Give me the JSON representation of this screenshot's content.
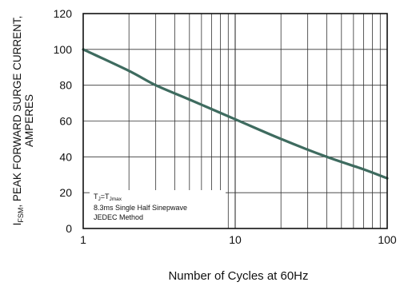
{
  "chart_data": {
    "type": "line",
    "xscale": "log",
    "xlim": [
      1,
      100
    ],
    "ylim": [
      0,
      120
    ],
    "x_ticks": [
      1,
      10,
      100
    ],
    "y_ticks": [
      0,
      20,
      40,
      60,
      80,
      100,
      120
    ],
    "xlabel": "Number of Cycles at 60Hz",
    "ylabel_line1": "PEAK FORWARD SURGE CURRENT,",
    "ylabel_line2": "AMPERES",
    "ylabel_prefix": "I",
    "ylabel_subscript": "FSM",
    "ylabel_sep": ", ",
    "grid": true,
    "series": [
      {
        "color": "#3e6b5f",
        "x": [
          1,
          2,
          3,
          5,
          10,
          20,
          40,
          70,
          100
        ],
        "y": [
          100,
          88,
          80,
          72,
          61,
          50,
          40,
          33,
          28
        ]
      }
    ],
    "annotation": {
      "line1_a": "T",
      "line1_sub1": "J",
      "line1_b": "=T",
      "line1_sub2": "Jmax",
      "line2": "8.3ms Single Half  Sinepwave",
      "line3": "JEDEC Method"
    }
  }
}
